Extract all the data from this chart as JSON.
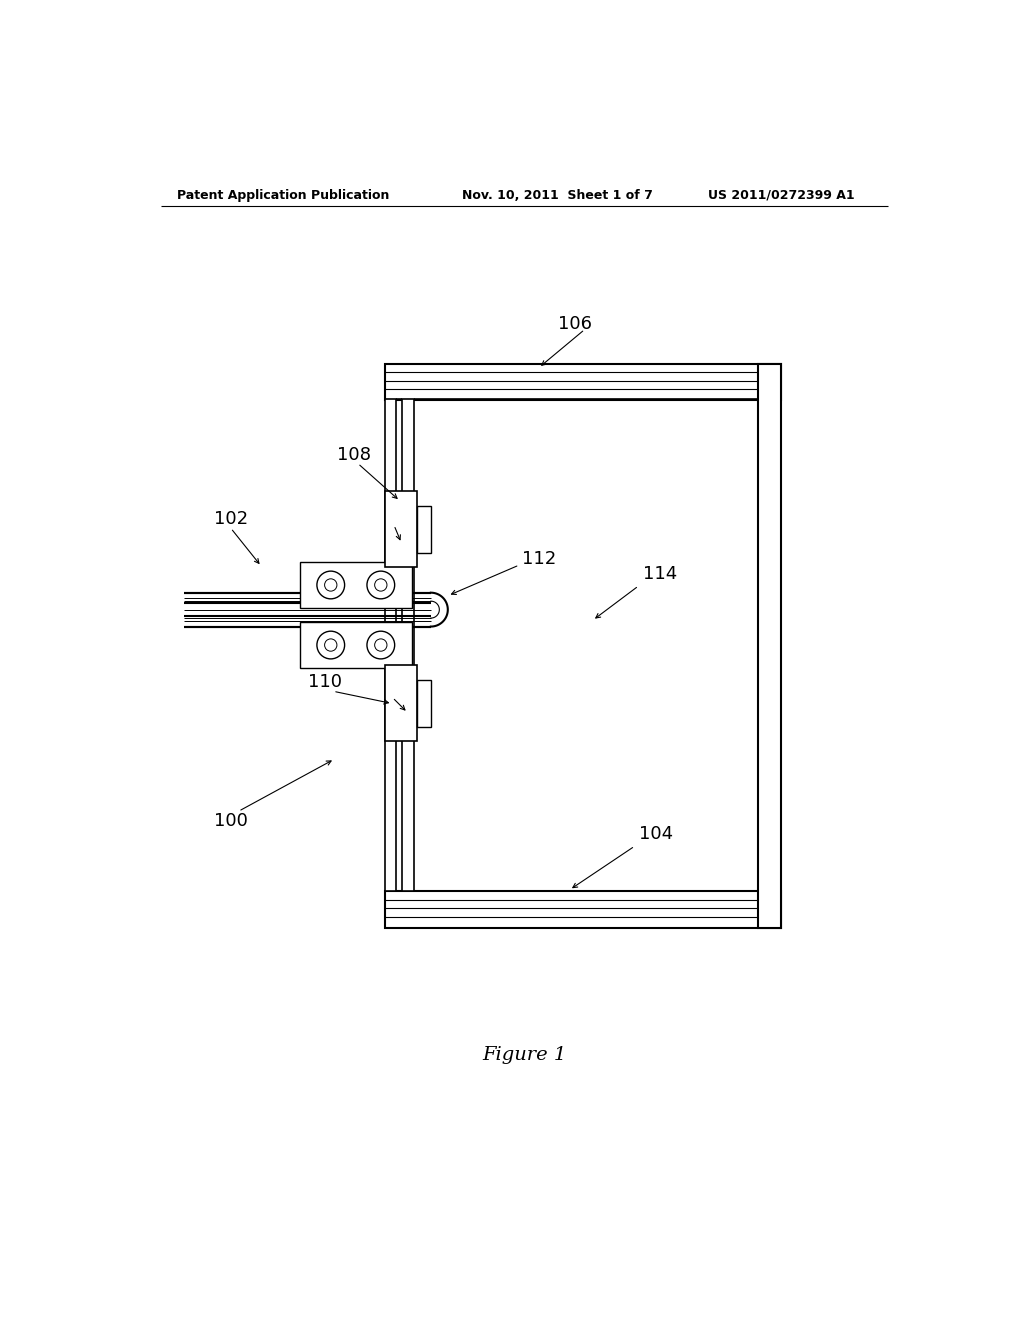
{
  "bg_color": "#ffffff",
  "line_color": "#000000",
  "header_left": "Patent Application Publication",
  "header_mid": "Nov. 10, 2011  Sheet 1 of 7",
  "header_right": "US 2011/0272399 A1",
  "figure_label": "Figure 1"
}
